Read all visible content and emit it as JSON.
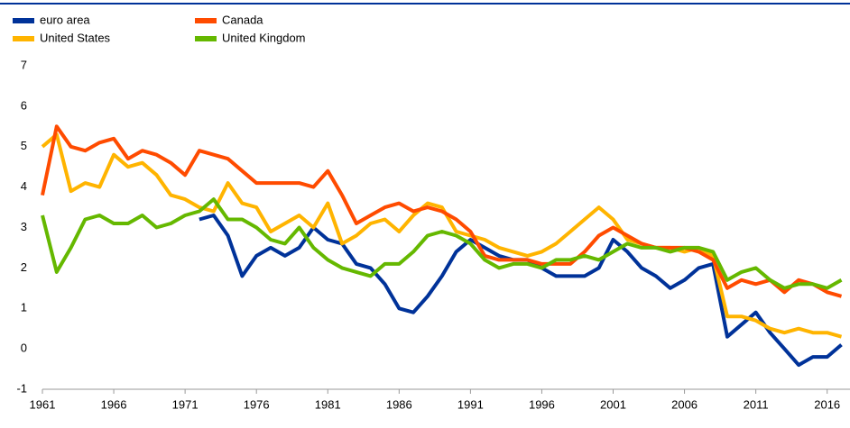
{
  "chart_data": {
    "type": "line",
    "x": [
      1961,
      1962,
      1963,
      1964,
      1965,
      1966,
      1967,
      1968,
      1969,
      1970,
      1971,
      1972,
      1973,
      1974,
      1975,
      1976,
      1977,
      1978,
      1979,
      1980,
      1981,
      1982,
      1983,
      1984,
      1985,
      1986,
      1987,
      1988,
      1989,
      1990,
      1991,
      1992,
      1993,
      1994,
      1995,
      1996,
      1997,
      1998,
      1999,
      2000,
      2001,
      2002,
      2003,
      2004,
      2005,
      2006,
      2007,
      2008,
      2009,
      2010,
      2011,
      2012,
      2013,
      2014,
      2015,
      2016,
      2017
    ],
    "series": [
      {
        "name": "euro area",
        "color": "#003299",
        "values": [
          null,
          null,
          null,
          null,
          null,
          null,
          null,
          null,
          null,
          null,
          null,
          3.2,
          3.3,
          2.8,
          1.8,
          2.3,
          2.5,
          2.3,
          2.5,
          3.0,
          2.7,
          2.6,
          2.1,
          2.0,
          1.6,
          1.0,
          0.9,
          1.3,
          1.8,
          2.4,
          2.7,
          2.5,
          2.3,
          2.2,
          2.2,
          2.0,
          1.8,
          1.8,
          1.8,
          2.0,
          2.7,
          2.4,
          2.0,
          1.8,
          1.5,
          1.7,
          2.0,
          2.1,
          0.3,
          0.6,
          0.9,
          0.4,
          0.0,
          -0.4,
          -0.2,
          -0.2,
          0.1
        ]
      },
      {
        "name": "United States",
        "color": "#ffb400",
        "values": [
          5.0,
          5.3,
          3.9,
          4.1,
          4.0,
          4.8,
          4.5,
          4.6,
          4.3,
          3.8,
          3.7,
          3.5,
          3.4,
          4.1,
          3.6,
          3.5,
          2.9,
          3.1,
          3.3,
          3.0,
          3.6,
          2.6,
          2.8,
          3.1,
          3.2,
          2.9,
          3.3,
          3.6,
          3.5,
          2.9,
          2.8,
          2.7,
          2.5,
          2.4,
          2.3,
          2.4,
          2.6,
          2.9,
          3.2,
          3.5,
          3.2,
          2.7,
          2.6,
          2.5,
          2.5,
          2.4,
          2.5,
          2.3,
          0.8,
          0.8,
          0.7,
          0.5,
          0.4,
          0.5,
          0.4,
          0.4,
          0.3
        ]
      },
      {
        "name": "Canada",
        "color": "#ff4b00",
        "values": [
          3.8,
          5.5,
          5.0,
          4.9,
          5.1,
          5.2,
          4.7,
          4.9,
          4.8,
          4.6,
          4.3,
          4.9,
          4.8,
          4.7,
          4.4,
          4.1,
          4.1,
          4.1,
          4.1,
          4.0,
          4.4,
          3.8,
          3.1,
          3.3,
          3.5,
          3.6,
          3.4,
          3.5,
          3.4,
          3.2,
          2.9,
          2.3,
          2.2,
          2.2,
          2.2,
          2.1,
          2.1,
          2.1,
          2.4,
          2.8,
          3.0,
          2.8,
          2.6,
          2.5,
          2.5,
          2.5,
          2.4,
          2.2,
          1.5,
          1.7,
          1.6,
          1.7,
          1.4,
          1.7,
          1.6,
          1.4,
          1.3
        ]
      },
      {
        "name": "United Kingdom",
        "color": "#65b800",
        "values": [
          3.3,
          1.9,
          2.5,
          3.2,
          3.3,
          3.1,
          3.1,
          3.3,
          3.0,
          3.1,
          3.3,
          3.4,
          3.7,
          3.2,
          3.2,
          3.0,
          2.7,
          2.6,
          3.0,
          2.5,
          2.2,
          2.0,
          1.9,
          1.8,
          2.1,
          2.1,
          2.4,
          2.8,
          2.9,
          2.8,
          2.6,
          2.2,
          2.0,
          2.1,
          2.1,
          2.0,
          2.2,
          2.2,
          2.3,
          2.2,
          2.4,
          2.6,
          2.5,
          2.5,
          2.4,
          2.5,
          2.5,
          2.4,
          1.7,
          1.9,
          2.0,
          1.7,
          1.5,
          1.6,
          1.6,
          1.5,
          1.7
        ]
      }
    ],
    "xlim": [
      1961,
      2017.6
    ],
    "xticks": [
      1961,
      1966,
      1971,
      1976,
      1981,
      1986,
      1991,
      1996,
      2001,
      2006,
      2011,
      2016
    ],
    "ylim": [
      -1,
      7
    ],
    "yticks": [
      -1,
      0,
      1,
      2,
      3,
      4,
      5,
      6,
      7
    ],
    "grid": false
  }
}
